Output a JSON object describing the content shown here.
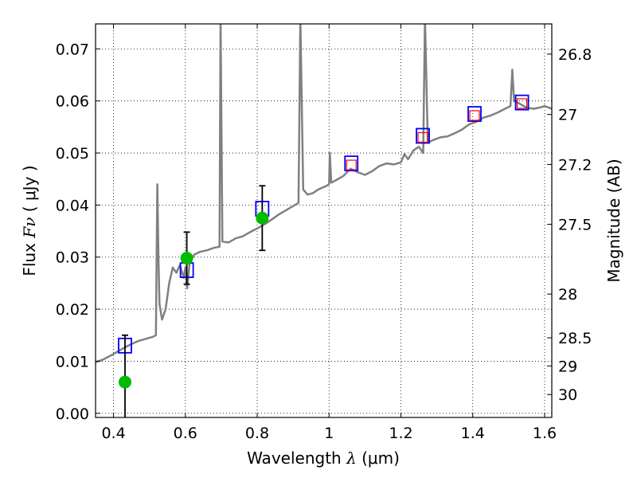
{
  "chart_data": {
    "type": "scatter",
    "xlabel": {
      "prefix": "Wavelength",
      "symbol": "λ",
      "unit": "(μm)"
    },
    "ylabel": {
      "prefix": "Flux",
      "symbol": "Fν",
      "unit": "( μJy )"
    },
    "y2label": "Magnitude (AB)",
    "xlim": [
      0.35,
      1.62
    ],
    "ylim": [
      -0.0008,
      0.0748
    ],
    "grid": true,
    "x_ticks": [
      0.4,
      0.6,
      0.8,
      1.0,
      1.2,
      1.4,
      1.6
    ],
    "x_tick_labels": [
      "0.4",
      "0.6",
      "0.8",
      "1",
      "1.2",
      "1.4",
      "1.6"
    ],
    "y_ticks": [
      0.0,
      0.01,
      0.02,
      0.03,
      0.04,
      0.05,
      0.06,
      0.07
    ],
    "y_tick_labels": [
      "0.00",
      "0.01",
      "0.02",
      "0.03",
      "0.04",
      "0.05",
      "0.06",
      "0.07"
    ],
    "y2_ticks": [
      {
        "flux": 0.069,
        "label": "26.8"
      },
      {
        "flux": 0.0574,
        "label": "27"
      },
      {
        "flux": 0.0478,
        "label": "27.2"
      },
      {
        "flux": 0.0363,
        "label": "27.5"
      },
      {
        "flux": 0.0229,
        "label": "28"
      },
      {
        "flux": 0.0145,
        "label": "28.5"
      },
      {
        "flux": 0.0091,
        "label": "29"
      },
      {
        "flux": 0.0036,
        "label": "30"
      }
    ],
    "series": [
      {
        "style": "line",
        "color": "#808080",
        "points": [
          [
            0.35,
            0.0098
          ],
          [
            0.37,
            0.0103
          ],
          [
            0.39,
            0.011
          ],
          [
            0.41,
            0.0118
          ],
          [
            0.43,
            0.0126
          ],
          [
            0.45,
            0.0133
          ],
          [
            0.47,
            0.0139
          ],
          [
            0.49,
            0.0143
          ],
          [
            0.51,
            0.0147
          ],
          [
            0.518,
            0.015
          ],
          [
            0.522,
            0.044
          ],
          [
            0.525,
            0.03
          ],
          [
            0.528,
            0.021
          ],
          [
            0.535,
            0.018
          ],
          [
            0.545,
            0.02
          ],
          [
            0.555,
            0.025
          ],
          [
            0.565,
            0.028
          ],
          [
            0.575,
            0.027
          ],
          [
            0.585,
            0.0285
          ],
          [
            0.595,
            0.026
          ],
          [
            0.6,
            0.028
          ],
          [
            0.605,
            0.024
          ],
          [
            0.612,
            0.029
          ],
          [
            0.625,
            0.0305
          ],
          [
            0.64,
            0.031
          ],
          [
            0.66,
            0.0313
          ],
          [
            0.68,
            0.0318
          ],
          [
            0.695,
            0.032
          ],
          [
            0.698,
            0.076
          ],
          [
            0.703,
            0.033
          ],
          [
            0.72,
            0.0328
          ],
          [
            0.74,
            0.0336
          ],
          [
            0.76,
            0.034
          ],
          [
            0.78,
            0.0348
          ],
          [
            0.8,
            0.0355
          ],
          [
            0.82,
            0.0363
          ],
          [
            0.84,
            0.0372
          ],
          [
            0.86,
            0.0382
          ],
          [
            0.88,
            0.039
          ],
          [
            0.9,
            0.0398
          ],
          [
            0.915,
            0.0404
          ],
          [
            0.92,
            0.076
          ],
          [
            0.928,
            0.043
          ],
          [
            0.94,
            0.042
          ],
          [
            0.955,
            0.0423
          ],
          [
            0.97,
            0.043
          ],
          [
            0.99,
            0.0436
          ],
          [
            1.0,
            0.044
          ],
          [
            1.002,
            0.05
          ],
          [
            1.006,
            0.0443
          ],
          [
            1.02,
            0.0448
          ],
          [
            1.04,
            0.0456
          ],
          [
            1.06,
            0.047
          ],
          [
            1.08,
            0.0463
          ],
          [
            1.1,
            0.0458
          ],
          [
            1.12,
            0.0465
          ],
          [
            1.14,
            0.0475
          ],
          [
            1.16,
            0.048
          ],
          [
            1.18,
            0.0478
          ],
          [
            1.2,
            0.0482
          ],
          [
            1.21,
            0.0498
          ],
          [
            1.22,
            0.0488
          ],
          [
            1.235,
            0.0505
          ],
          [
            1.25,
            0.0512
          ],
          [
            1.262,
            0.05
          ],
          [
            1.267,
            0.076
          ],
          [
            1.275,
            0.052
          ],
          [
            1.29,
            0.0525
          ],
          [
            1.31,
            0.053
          ],
          [
            1.33,
            0.0532
          ],
          [
            1.35,
            0.0538
          ],
          [
            1.37,
            0.0545
          ],
          [
            1.39,
            0.0555
          ],
          [
            1.41,
            0.056
          ],
          [
            1.43,
            0.0568
          ],
          [
            1.45,
            0.0572
          ],
          [
            1.47,
            0.0578
          ],
          [
            1.49,
            0.0585
          ],
          [
            1.505,
            0.059
          ],
          [
            1.51,
            0.066
          ],
          [
            1.515,
            0.06
          ],
          [
            1.53,
            0.0595
          ],
          [
            1.55,
            0.0587
          ],
          [
            1.57,
            0.0585
          ],
          [
            1.59,
            0.0588
          ],
          [
            1.6,
            0.059
          ],
          [
            1.62,
            0.0585
          ]
        ]
      },
      {
        "style": "square-open",
        "color": "#0000ff",
        "points": [
          [
            0.432,
            0.013
          ],
          [
            0.604,
            0.0275
          ],
          [
            0.814,
            0.0393
          ],
          [
            1.062,
            0.048
          ],
          [
            1.261,
            0.0533
          ],
          [
            1.405,
            0.0575
          ],
          [
            1.537,
            0.0597
          ]
        ]
      },
      {
        "style": "square-open-small",
        "color": "#ff0000",
        "points": [
          [
            1.062,
            0.0477
          ],
          [
            1.261,
            0.053
          ],
          [
            1.405,
            0.0572
          ],
          [
            1.537,
            0.0595
          ]
        ]
      },
      {
        "style": "circle-filled",
        "color": "#00bb00",
        "errorbar_color": "#000000",
        "points": [
          {
            "x": 0.432,
            "y": 0.006,
            "err": 0.009
          },
          {
            "x": 0.604,
            "y": 0.0298,
            "err": 0.005
          },
          {
            "x": 0.814,
            "y": 0.0375,
            "err": 0.0062
          }
        ]
      }
    ]
  }
}
